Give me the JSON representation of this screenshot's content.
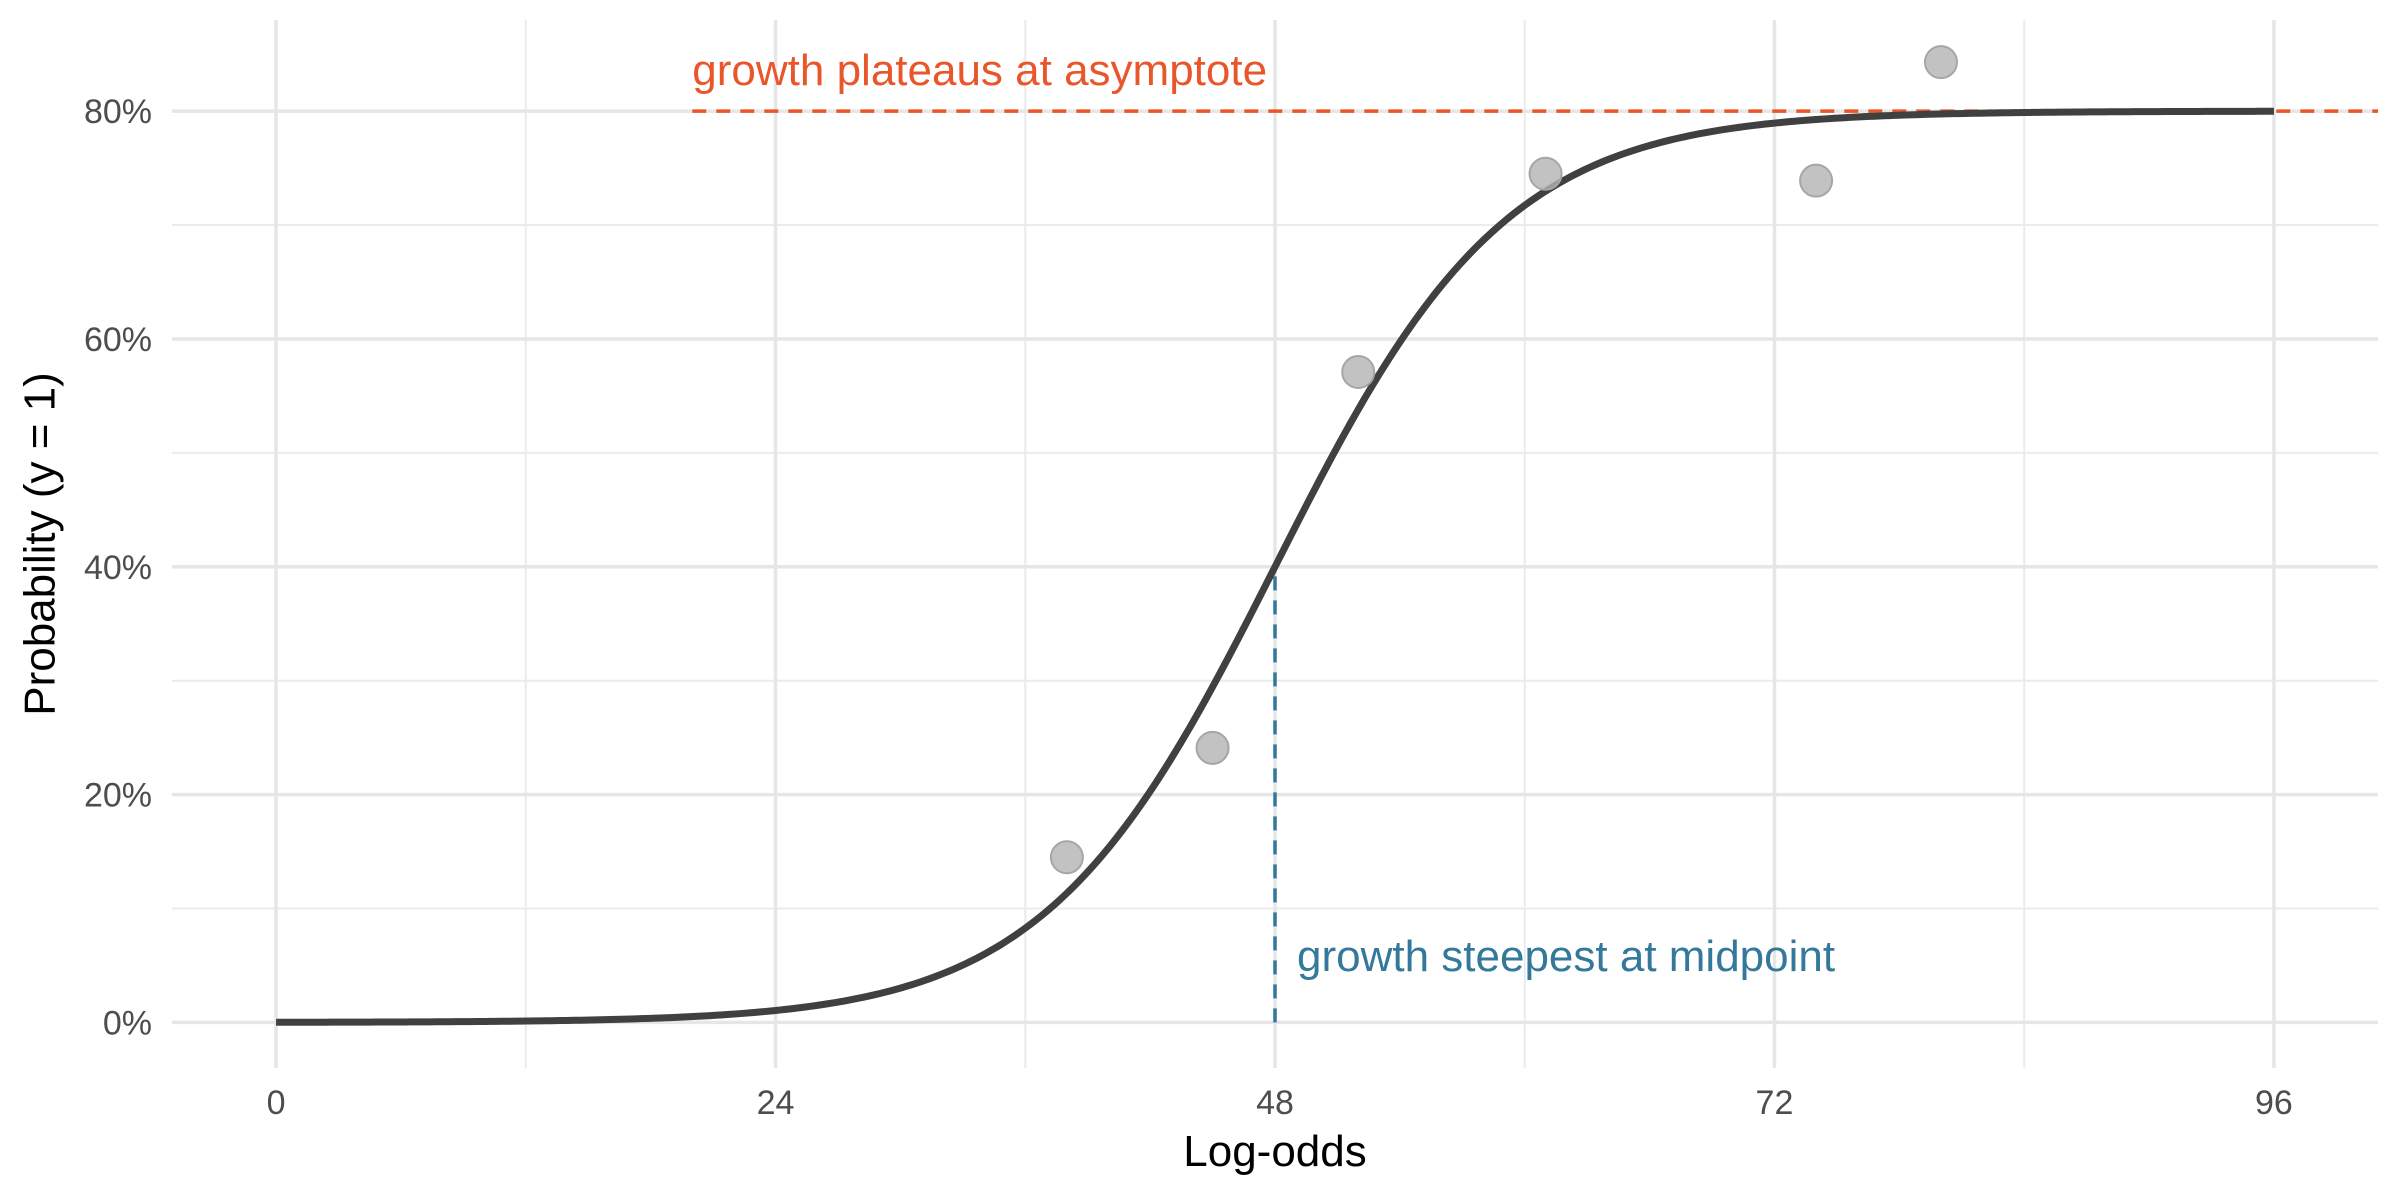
{
  "chart_data": {
    "type": "line",
    "title": "",
    "xlabel": "Log-odds",
    "ylabel": "Probability (y = 1)",
    "xlim": [
      -5,
      101
    ],
    "ylim": [
      -0.04,
      0.88
    ],
    "x_ticks": [
      0,
      24,
      48,
      72,
      96
    ],
    "x_tick_labels": [
      "0",
      "24",
      "48",
      "72",
      "96"
    ],
    "y_ticks": [
      0,
      0.2,
      0.4,
      0.6,
      0.8
    ],
    "y_tick_labels": [
      "0%",
      "20%",
      "40%",
      "60%",
      "80%"
    ],
    "grid": true,
    "legend": "none",
    "curve": {
      "model": "logistic",
      "asymptote": 0.8,
      "midpoint": 48,
      "rate": 0.18,
      "x_range": [
        0,
        96
      ],
      "color": "#404040"
    },
    "points": {
      "x": [
        38,
        45,
        52,
        61,
        74,
        80
      ],
      "y": [
        0.145,
        0.241,
        0.571,
        0.745,
        0.739,
        0.843
      ],
      "color": "#b3b3b3"
    },
    "reference_lines": [
      {
        "orientation": "horizontal",
        "y": 0.8,
        "x_start": 20,
        "color": "#e8562a",
        "label": "growth plateaus at asymptote"
      },
      {
        "orientation": "vertical",
        "x": 48,
        "y_start": 0,
        "y_end": 0.4,
        "color": "#34789b",
        "label": "growth steepest at midpoint"
      }
    ]
  }
}
